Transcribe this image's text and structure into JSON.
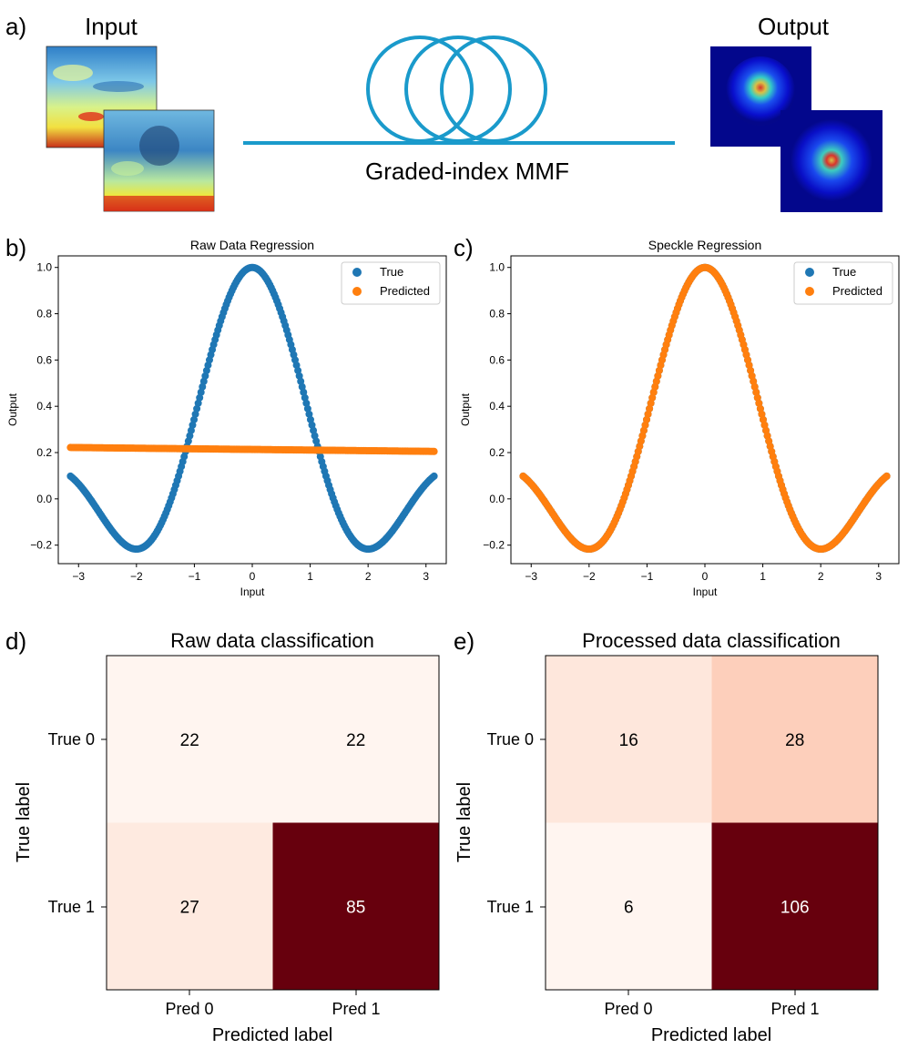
{
  "panel_a": {
    "label": "a)",
    "input_title": "Input",
    "output_title": "Output",
    "fiber_label": "Graded-index MMF",
    "colors": {
      "fiber": "#1a9acb"
    }
  },
  "chart_data": [
    {
      "type": "scatter",
      "panel_label": "b)",
      "title": "Raw Data Regression",
      "xlabel": "Input",
      "ylabel": "Output",
      "xlim": [
        -3.35,
        3.35
      ],
      "ylim": [
        -0.28,
        1.05
      ],
      "xticks": [
        -3,
        -2,
        -1,
        0,
        1,
        2,
        3
      ],
      "yticks": [
        -0.2,
        0.0,
        0.2,
        0.4,
        0.6,
        0.8,
        1.0
      ],
      "xtick_labels": [
        "−3",
        "−2",
        "−1",
        "0",
        "1",
        "2",
        "3"
      ],
      "ytick_labels": [
        "−0.2",
        "0.0",
        "0.2",
        "0.4",
        "0.6",
        "0.8",
        "1.0"
      ],
      "x_range": [
        -3.14,
        3.14
      ],
      "series": [
        {
          "name": "True",
          "color": "#1f77b4",
          "function": "sinc(x)",
          "x_range": [
            -3.14,
            3.14
          ]
        },
        {
          "name": "Predicted",
          "color": "#ff7f0e",
          "function": "linear",
          "endpoints": [
            [
              -3.14,
              0.222
            ],
            [
              3.14,
              0.205
            ]
          ]
        }
      ],
      "legend_position": "upper right"
    },
    {
      "type": "scatter",
      "panel_label": "c)",
      "title": "Speckle Regression",
      "xlabel": "Input",
      "ylabel": "Output",
      "xlim": [
        -3.35,
        3.35
      ],
      "ylim": [
        -0.28,
        1.05
      ],
      "xticks": [
        -3,
        -2,
        -1,
        0,
        1,
        2,
        3
      ],
      "yticks": [
        -0.2,
        0.0,
        0.2,
        0.4,
        0.6,
        0.8,
        1.0
      ],
      "xtick_labels": [
        "−3",
        "−2",
        "−1",
        "0",
        "1",
        "2",
        "3"
      ],
      "ytick_labels": [
        "−0.2",
        "0.0",
        "0.2",
        "0.4",
        "0.6",
        "0.8",
        "1.0"
      ],
      "x_range": [
        -3.14,
        3.14
      ],
      "series": [
        {
          "name": "True",
          "color": "#1f77b4",
          "function": "sinc(x)",
          "x_range": [
            -3.14,
            3.14
          ]
        },
        {
          "name": "Predicted",
          "color": "#ff7f0e",
          "function": "sinc(x)",
          "x_range": [
            -3.14,
            3.14
          ]
        }
      ],
      "legend_position": "upper right"
    },
    {
      "type": "heatmap",
      "panel_label": "d)",
      "title": "Raw data classification",
      "xlabel": "Predicted label",
      "ylabel": "True label",
      "x_categories": [
        "Pred 0",
        "Pred 1"
      ],
      "y_categories": [
        "True 0",
        "True 1"
      ],
      "values": [
        [
          22,
          22
        ],
        [
          27,
          85
        ]
      ],
      "colormap": "Reds"
    },
    {
      "type": "heatmap",
      "panel_label": "e)",
      "title": "Processed data classification",
      "xlabel": "Predicted label",
      "ylabel": "True label",
      "x_categories": [
        "Pred 0",
        "Pred 1"
      ],
      "y_categories": [
        "True 0",
        "True 1"
      ],
      "values": [
        [
          16,
          28
        ],
        [
          6,
          106
        ]
      ],
      "colormap": "Reds"
    }
  ]
}
